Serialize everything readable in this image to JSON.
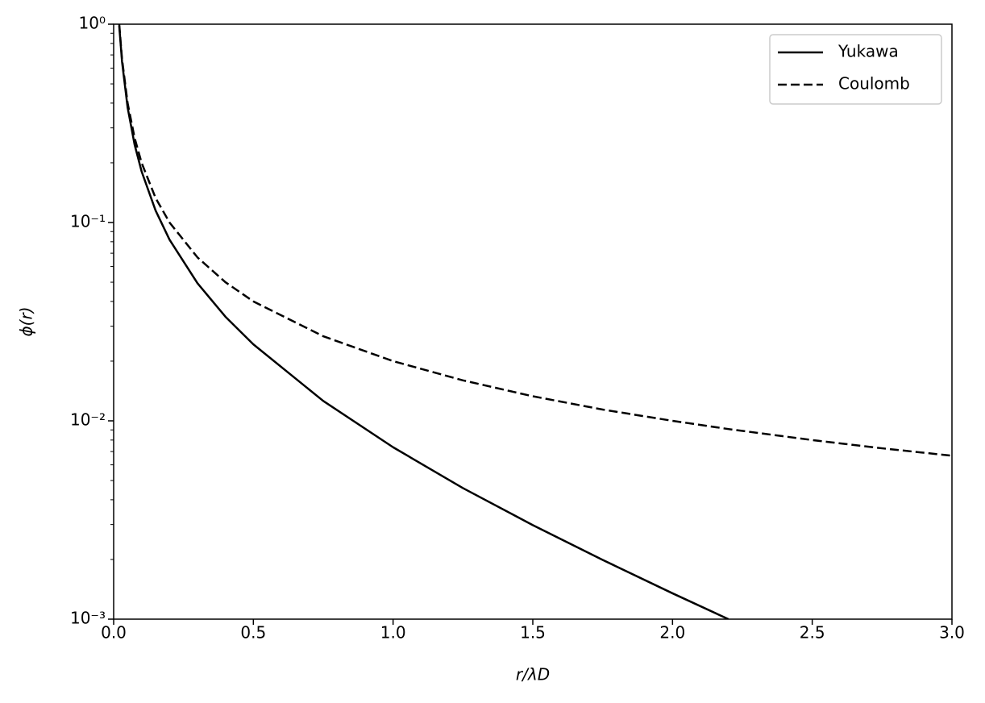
{
  "chart_data": {
    "type": "line",
    "x_label": "r/λD",
    "y_label": "ϕ(r)",
    "x": [
      0.02,
      0.03,
      0.05,
      0.075,
      0.1,
      0.15,
      0.2,
      0.3,
      0.4,
      0.5,
      0.75,
      1.0,
      1.25,
      1.5,
      1.75,
      2.0,
      2.2,
      2.5,
      2.75,
      3.0
    ],
    "series": [
      {
        "name": "Yukawa",
        "color": "#000000",
        "dash": "solid",
        "values": [
          0.98,
          0.647,
          0.38,
          0.247,
          0.181,
          0.115,
          0.0819,
          0.0494,
          0.0335,
          0.0243,
          0.0126,
          0.00736,
          0.00458,
          0.00298,
          0.00199,
          0.00135,
          0.001,
          null,
          null,
          null
        ]
      },
      {
        "name": "Coulomb",
        "color": "#000000",
        "dash": "dashed",
        "values": [
          1.0,
          0.667,
          0.4,
          0.267,
          0.2,
          0.133,
          0.1,
          0.0667,
          0.05,
          0.04,
          0.0267,
          0.02,
          0.016,
          0.0133,
          0.0114,
          0.01,
          0.00909,
          0.008,
          0.00727,
          0.00667
        ]
      }
    ],
    "xlim": [
      0,
      3
    ],
    "xticks": [
      {
        "value": 0,
        "label": "0.0"
      },
      0.5,
      {
        "value": 1,
        "label": "1.0"
      },
      1.5,
      {
        "value": 2,
        "label": "2.0"
      },
      2.5,
      {
        "value": 3,
        "label": "3.0"
      }
    ],
    "ylim": [
      0.001,
      1
    ],
    "yscale": "log",
    "yticks": [
      {
        "value": 0.001,
        "label": "10⁻³"
      },
      {
        "value": 0.01,
        "label": "10⁻²"
      },
      {
        "value": 0.1,
        "label": "10⁻¹"
      },
      {
        "value": 1,
        "label": "10⁰"
      }
    ],
    "yminorticks": [
      0.002,
      0.003,
      0.004,
      0.005,
      0.006,
      0.007,
      0.008,
      0.009,
      0.02,
      0.03,
      0.04,
      0.05,
      0.06,
      0.07,
      0.08,
      0.09,
      0.2,
      0.3,
      0.4,
      0.5,
      0.6,
      0.7,
      0.8,
      0.9
    ],
    "legend": "upper right",
    "grid": false
  }
}
